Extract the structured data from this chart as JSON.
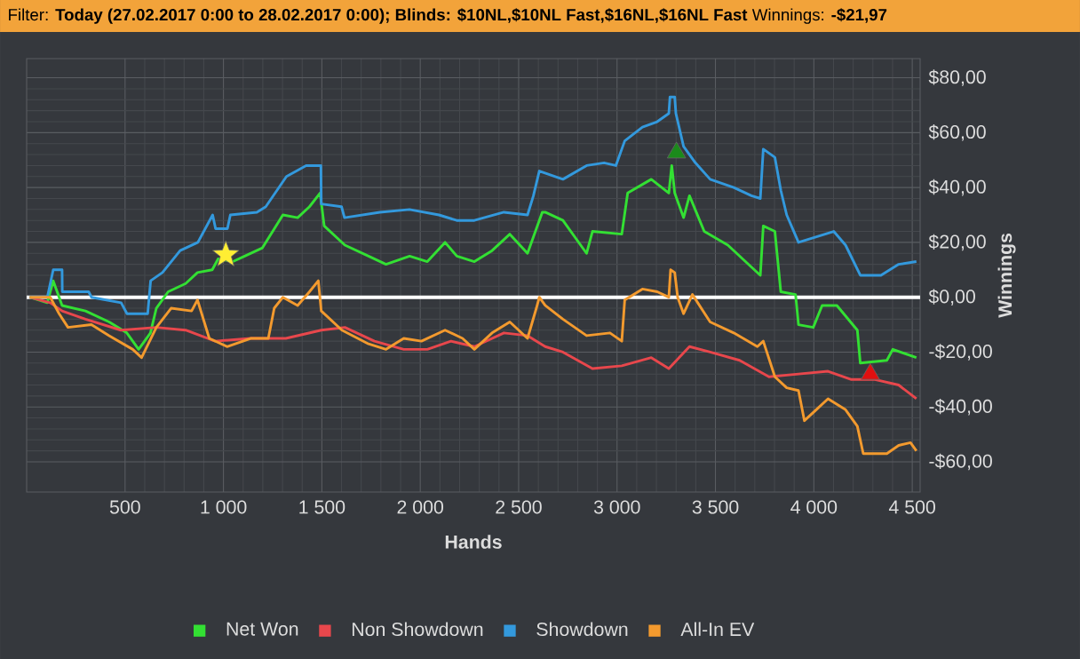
{
  "chart_data": {
    "type": "line",
    "title": "Filter: **Today (27.02.2017 0:00 to 28.02.2017 0:00); Blinds: $10NL,$10NL Fast,$16NL,$16NL Fast** Winnings: **-$21,97**",
    "xlabel": "Hands",
    "ylabel": "Winnings",
    "xlim": [
      0,
      4540
    ],
    "ylim": [
      -71,
      87
    ],
    "xticks": [
      500,
      {
        "value": 1000,
        "label": "1 000"
      },
      {
        "value": 1500,
        "label": "1 500"
      },
      {
        "value": 2000,
        "label": "2 000"
      },
      {
        "value": 2500,
        "label": "2 500"
      },
      {
        "value": 3000,
        "label": "3 000"
      },
      {
        "value": 3500,
        "label": "3 500"
      },
      {
        "value": 4000,
        "label": "4 000"
      },
      {
        "value": 4500,
        "label": "4 500"
      }
    ],
    "yticks": [
      {
        "value": -60,
        "label": "-$60,00"
      },
      {
        "value": -40,
        "label": "-$40,00"
      },
      {
        "value": -20,
        "label": "-$20,00"
      },
      {
        "value": 0,
        "label": "$0,00"
      },
      {
        "value": 20,
        "label": "$20,00"
      },
      {
        "value": 40,
        "label": "$40,00"
      },
      {
        "value": 60,
        "label": "$60,00"
      },
      {
        "value": 80,
        "label": "$80,00"
      }
    ],
    "grid": true,
    "legend": "bottom",
    "marker": "none",
    "ref_lines": [
      {
        "axis": "y",
        "value": 0,
        "color": "#ffffff"
      }
    ],
    "series": [
      {
        "name": "Net Won",
        "color": "#33e033",
        "x": [
          15,
          105,
          135,
          180,
          299,
          419,
          509,
          569,
          629,
          659,
          719,
          808,
          868,
          943,
          973,
          1048,
          1108,
          1198,
          1302,
          1377,
          1437,
          1491,
          1512,
          1617,
          1737,
          1826,
          1946,
          2036,
          2126,
          2186,
          2275,
          2365,
          2455,
          2545,
          2620,
          2635,
          2725,
          2845,
          2875,
          3024,
          3054,
          3174,
          3263,
          3278,
          3293,
          3338,
          3368,
          3443,
          3563,
          3683,
          3728,
          3743,
          3802,
          3832,
          3907,
          3922,
          3997,
          4042,
          4117,
          4221,
          4236,
          4371,
          4401,
          4521
        ],
        "values": [
          0,
          -2,
          6,
          -3,
          -5,
          -9,
          -13,
          -19,
          -13,
          -4,
          2,
          5,
          9,
          10,
          14,
          13,
          15,
          18,
          30,
          29,
          33,
          38,
          26,
          19,
          15,
          12,
          15,
          13,
          20,
          15,
          13,
          17,
          23,
          16,
          31,
          31,
          28,
          16,
          24,
          23,
          38,
          43,
          38,
          48,
          38,
          29,
          37,
          24,
          19,
          11,
          8,
          26,
          24,
          2,
          1,
          -10,
          -11,
          -3,
          -3,
          -12,
          -24,
          -23,
          -19,
          -22
        ]
      },
      {
        "name": "Non Showdown",
        "color": "#e8474c",
        "x": [
          15,
          120,
          180,
          299,
          479,
          659,
          808,
          958,
          1138,
          1317,
          1497,
          1617,
          1767,
          1916,
          2036,
          2156,
          2275,
          2425,
          2545,
          2635,
          2725,
          2875,
          3024,
          3174,
          3263,
          3368,
          3473,
          3623,
          3772,
          3922,
          4072,
          4191,
          4311,
          4431,
          4521
        ],
        "values": [
          0,
          -2,
          -5,
          -8,
          -12,
          -11,
          -12,
          -16,
          -15,
          -15,
          -12,
          -11,
          -16,
          -19,
          -19,
          -16,
          -18,
          -13,
          -14,
          -18,
          -20,
          -26,
          -25,
          -22,
          -26,
          -18,
          -20,
          -23,
          -29,
          -28,
          -27,
          -30,
          -30,
          -32,
          -37
        ]
      },
      {
        "name": "Showdown",
        "color": "#3399dd",
        "x": [
          15,
          105,
          135,
          180,
          181,
          315,
          330,
          480,
          510,
          615,
          630,
          690,
          780,
          870,
          945,
          960,
          1020,
          1035,
          1170,
          1215,
          1320,
          1420,
          1495,
          1497,
          1600,
          1615,
          1795,
          1945,
          2095,
          2185,
          2275,
          2425,
          2545,
          2575,
          2605,
          2725,
          2845,
          2934,
          2994,
          3039,
          3129,
          3204,
          3263,
          3269,
          3293,
          3299,
          3338,
          3398,
          3473,
          3593,
          3683,
          3728,
          3743,
          3802,
          3832,
          3862,
          3922,
          4101,
          4161,
          4236,
          4341,
          4386,
          4431,
          4521
        ],
        "values": [
          0,
          0,
          10,
          10,
          2,
          2,
          0,
          -2,
          -6,
          -6,
          6,
          9,
          17,
          20,
          30,
          25,
          25,
          30,
          31,
          33,
          44,
          48,
          48,
          34,
          33,
          29,
          31,
          32,
          30,
          28,
          28,
          31,
          30,
          37,
          46,
          43,
          48,
          49,
          48,
          57,
          62,
          64,
          67,
          73,
          73,
          67,
          55,
          49,
          43,
          40,
          37,
          36,
          54,
          51,
          39,
          30,
          20,
          24,
          19,
          8,
          8,
          10,
          12,
          13
        ]
      },
      {
        "name": "All-In EV",
        "color": "#f39a2e",
        "x": [
          15,
          120,
          165,
          210,
          329,
          419,
          539,
          584,
          659,
          734,
          838,
          868,
          928,
          1018,
          1138,
          1228,
          1258,
          1302,
          1377,
          1437,
          1482,
          1497,
          1602,
          1737,
          1826,
          1916,
          2006,
          2126,
          2215,
          2275,
          2365,
          2455,
          2545,
          2590,
          2605,
          2635,
          2725,
          2845,
          2964,
          3024,
          3039,
          3129,
          3204,
          3263,
          3272,
          3293,
          3308,
          3338,
          3383,
          3473,
          3593,
          3713,
          3743,
          3802,
          3862,
          3922,
          3952,
          4012,
          4072,
          4161,
          4221,
          4251,
          4371,
          4431,
          4491,
          4521
        ],
        "values": [
          0,
          0,
          -6,
          -11,
          -10,
          -14,
          -19,
          -22,
          -11,
          -4,
          -5,
          -1,
          -15,
          -18,
          -15,
          -15,
          -4,
          0,
          -3,
          2,
          6,
          -5,
          -12,
          -17,
          -19,
          -15,
          -16,
          -12,
          -15,
          -19,
          -13,
          -9,
          -15,
          -4,
          0,
          -3,
          -8,
          -14,
          -13,
          -16,
          -1,
          3,
          2,
          0,
          10,
          9,
          0,
          -6,
          1,
          -9,
          -13,
          -18,
          -16,
          -29,
          -33,
          -34,
          -45,
          -41,
          -37,
          -41,
          -47,
          -57,
          -57,
          -54,
          -53,
          -56
        ]
      },
      {
        "type": "scatter",
        "marker": "star",
        "color": "#ffee33",
        "x": [
          1012
        ],
        "values": [
          15.5
        ]
      },
      {
        "type": "scatter",
        "marker": "triangle",
        "color": "#1b8a1b",
        "x": [
          3302
        ],
        "values": [
          52.7
        ]
      },
      {
        "type": "scatter",
        "marker": "triangle",
        "color": "#e01010",
        "x": [
          4287
        ],
        "values": [
          -28
        ]
      }
    ]
  }
}
